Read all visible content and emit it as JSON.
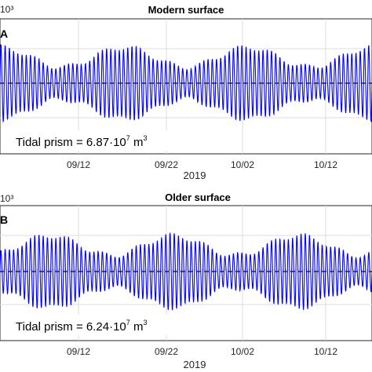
{
  "chart_data": [
    {
      "type": "line",
      "panel": "A",
      "title": "Modern surface",
      "exponent": "10³",
      "xlabel": "2019",
      "x_ticks": [
        "09/12",
        "09/22",
        "10/02",
        "10/12"
      ],
      "annotation": "Tidal prism = 6.87·10⁷ m³",
      "annotation_parts": {
        "lead": "Tidal prism = 6.87·10",
        "exp": "7",
        "unit": " m",
        "unit_exp": "3"
      },
      "grid": true,
      "mean_line": "black dashed",
      "series": [
        {
          "color": "#0000ff",
          "cycles": 88,
          "mean": 0,
          "spring_amplitude": 1.0,
          "neap_amplitude": 0.45
        }
      ]
    },
    {
      "type": "line",
      "panel": "B",
      "title": "Older surface",
      "exponent": "10³",
      "xlabel": "2019",
      "x_ticks": [
        "09/12",
        "09/22",
        "10/02",
        "10/12"
      ],
      "annotation": "Tidal prism = 6.24·10⁷ m³",
      "annotation_parts": {
        "lead": "Tidal prism = 6.24·10",
        "exp": "7",
        "unit": " m",
        "unit_exp": "3"
      },
      "grid": true,
      "mean_line": "black dashed",
      "series": [
        {
          "color": "#0000ff",
          "cycles": 88,
          "mean": 0,
          "spring_amplitude": 1.0,
          "neap_amplitude": 0.45
        }
      ]
    }
  ],
  "colors": {
    "line": "#0000ff",
    "grid": "#dcdcdc",
    "axis": "#262626"
  }
}
